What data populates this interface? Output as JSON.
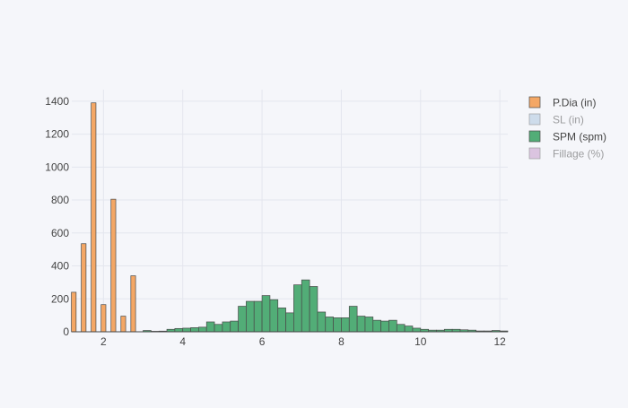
{
  "chart_data": {
    "type": "bar",
    "title": "",
    "xlabel": "",
    "ylabel": "",
    "xlim": [
      1.2,
      12.2
    ],
    "ylim": [
      0,
      1470
    ],
    "x_ticks": [
      2,
      4,
      6,
      8,
      10,
      12
    ],
    "y_ticks": [
      0,
      200,
      400,
      600,
      800,
      1000,
      1200,
      1400
    ],
    "grid": true,
    "legend_position": "top-right",
    "series": [
      {
        "name": "P.Dia (in)",
        "color": "#f4a765",
        "visible": true,
        "bar_width": 0.12,
        "x": [
          1.25,
          1.5,
          1.75,
          2.0,
          2.25,
          2.5,
          2.75
        ],
        "values": [
          240,
          535,
          1390,
          165,
          805,
          95,
          340
        ]
      },
      {
        "name": "SL (in)",
        "color": "#a9c3de",
        "visible": false,
        "x": [],
        "values": []
      },
      {
        "name": "SPM (spm)",
        "color": "#52ad77",
        "visible": true,
        "bar_width": 0.2,
        "x": [
          3.1,
          3.3,
          3.5,
          3.7,
          3.9,
          4.1,
          4.3,
          4.5,
          4.7,
          4.9,
          5.1,
          5.3,
          5.5,
          5.7,
          5.9,
          6.1,
          6.3,
          6.5,
          6.7,
          6.9,
          7.1,
          7.3,
          7.5,
          7.7,
          7.9,
          8.1,
          8.3,
          8.5,
          8.7,
          8.9,
          9.1,
          9.3,
          9.5,
          9.7,
          9.9,
          10.1,
          10.3,
          10.5,
          10.7,
          10.9,
          11.1,
          11.3,
          11.5,
          11.7,
          11.9,
          12.1
        ],
        "values": [
          8,
          3,
          4,
          15,
          20,
          22,
          25,
          28,
          60,
          45,
          60,
          65,
          155,
          185,
          185,
          220,
          195,
          145,
          115,
          285,
          315,
          275,
          120,
          90,
          85,
          85,
          155,
          95,
          90,
          70,
          65,
          70,
          45,
          35,
          22,
          15,
          10,
          10,
          15,
          15,
          12,
          10,
          5,
          5,
          8,
          5
        ]
      },
      {
        "name": "Fillage (%)",
        "color": "#c394c8",
        "visible": false,
        "x": [],
        "values": []
      }
    ]
  }
}
